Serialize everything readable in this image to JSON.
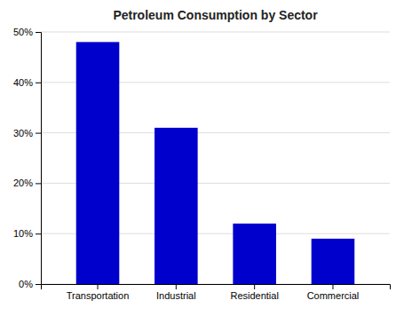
{
  "chart_data": {
    "type": "bar",
    "title": "Petroleum Consumption by Sector",
    "categories": [
      "Transportation",
      "Industrial",
      "Residential",
      "Commercial"
    ],
    "values": [
      48,
      31,
      12,
      9
    ],
    "color": "#0000CC",
    "ylim": [
      0,
      50
    ],
    "yticks": [
      {
        "value": 0,
        "label": "0%"
      },
      {
        "value": 10,
        "label": "10%"
      },
      {
        "value": 20,
        "label": "20%"
      },
      {
        "value": 30,
        "label": "30%"
      },
      {
        "value": 40,
        "label": "40%"
      },
      {
        "value": 50,
        "label": "50%"
      }
    ],
    "grid": true
  }
}
